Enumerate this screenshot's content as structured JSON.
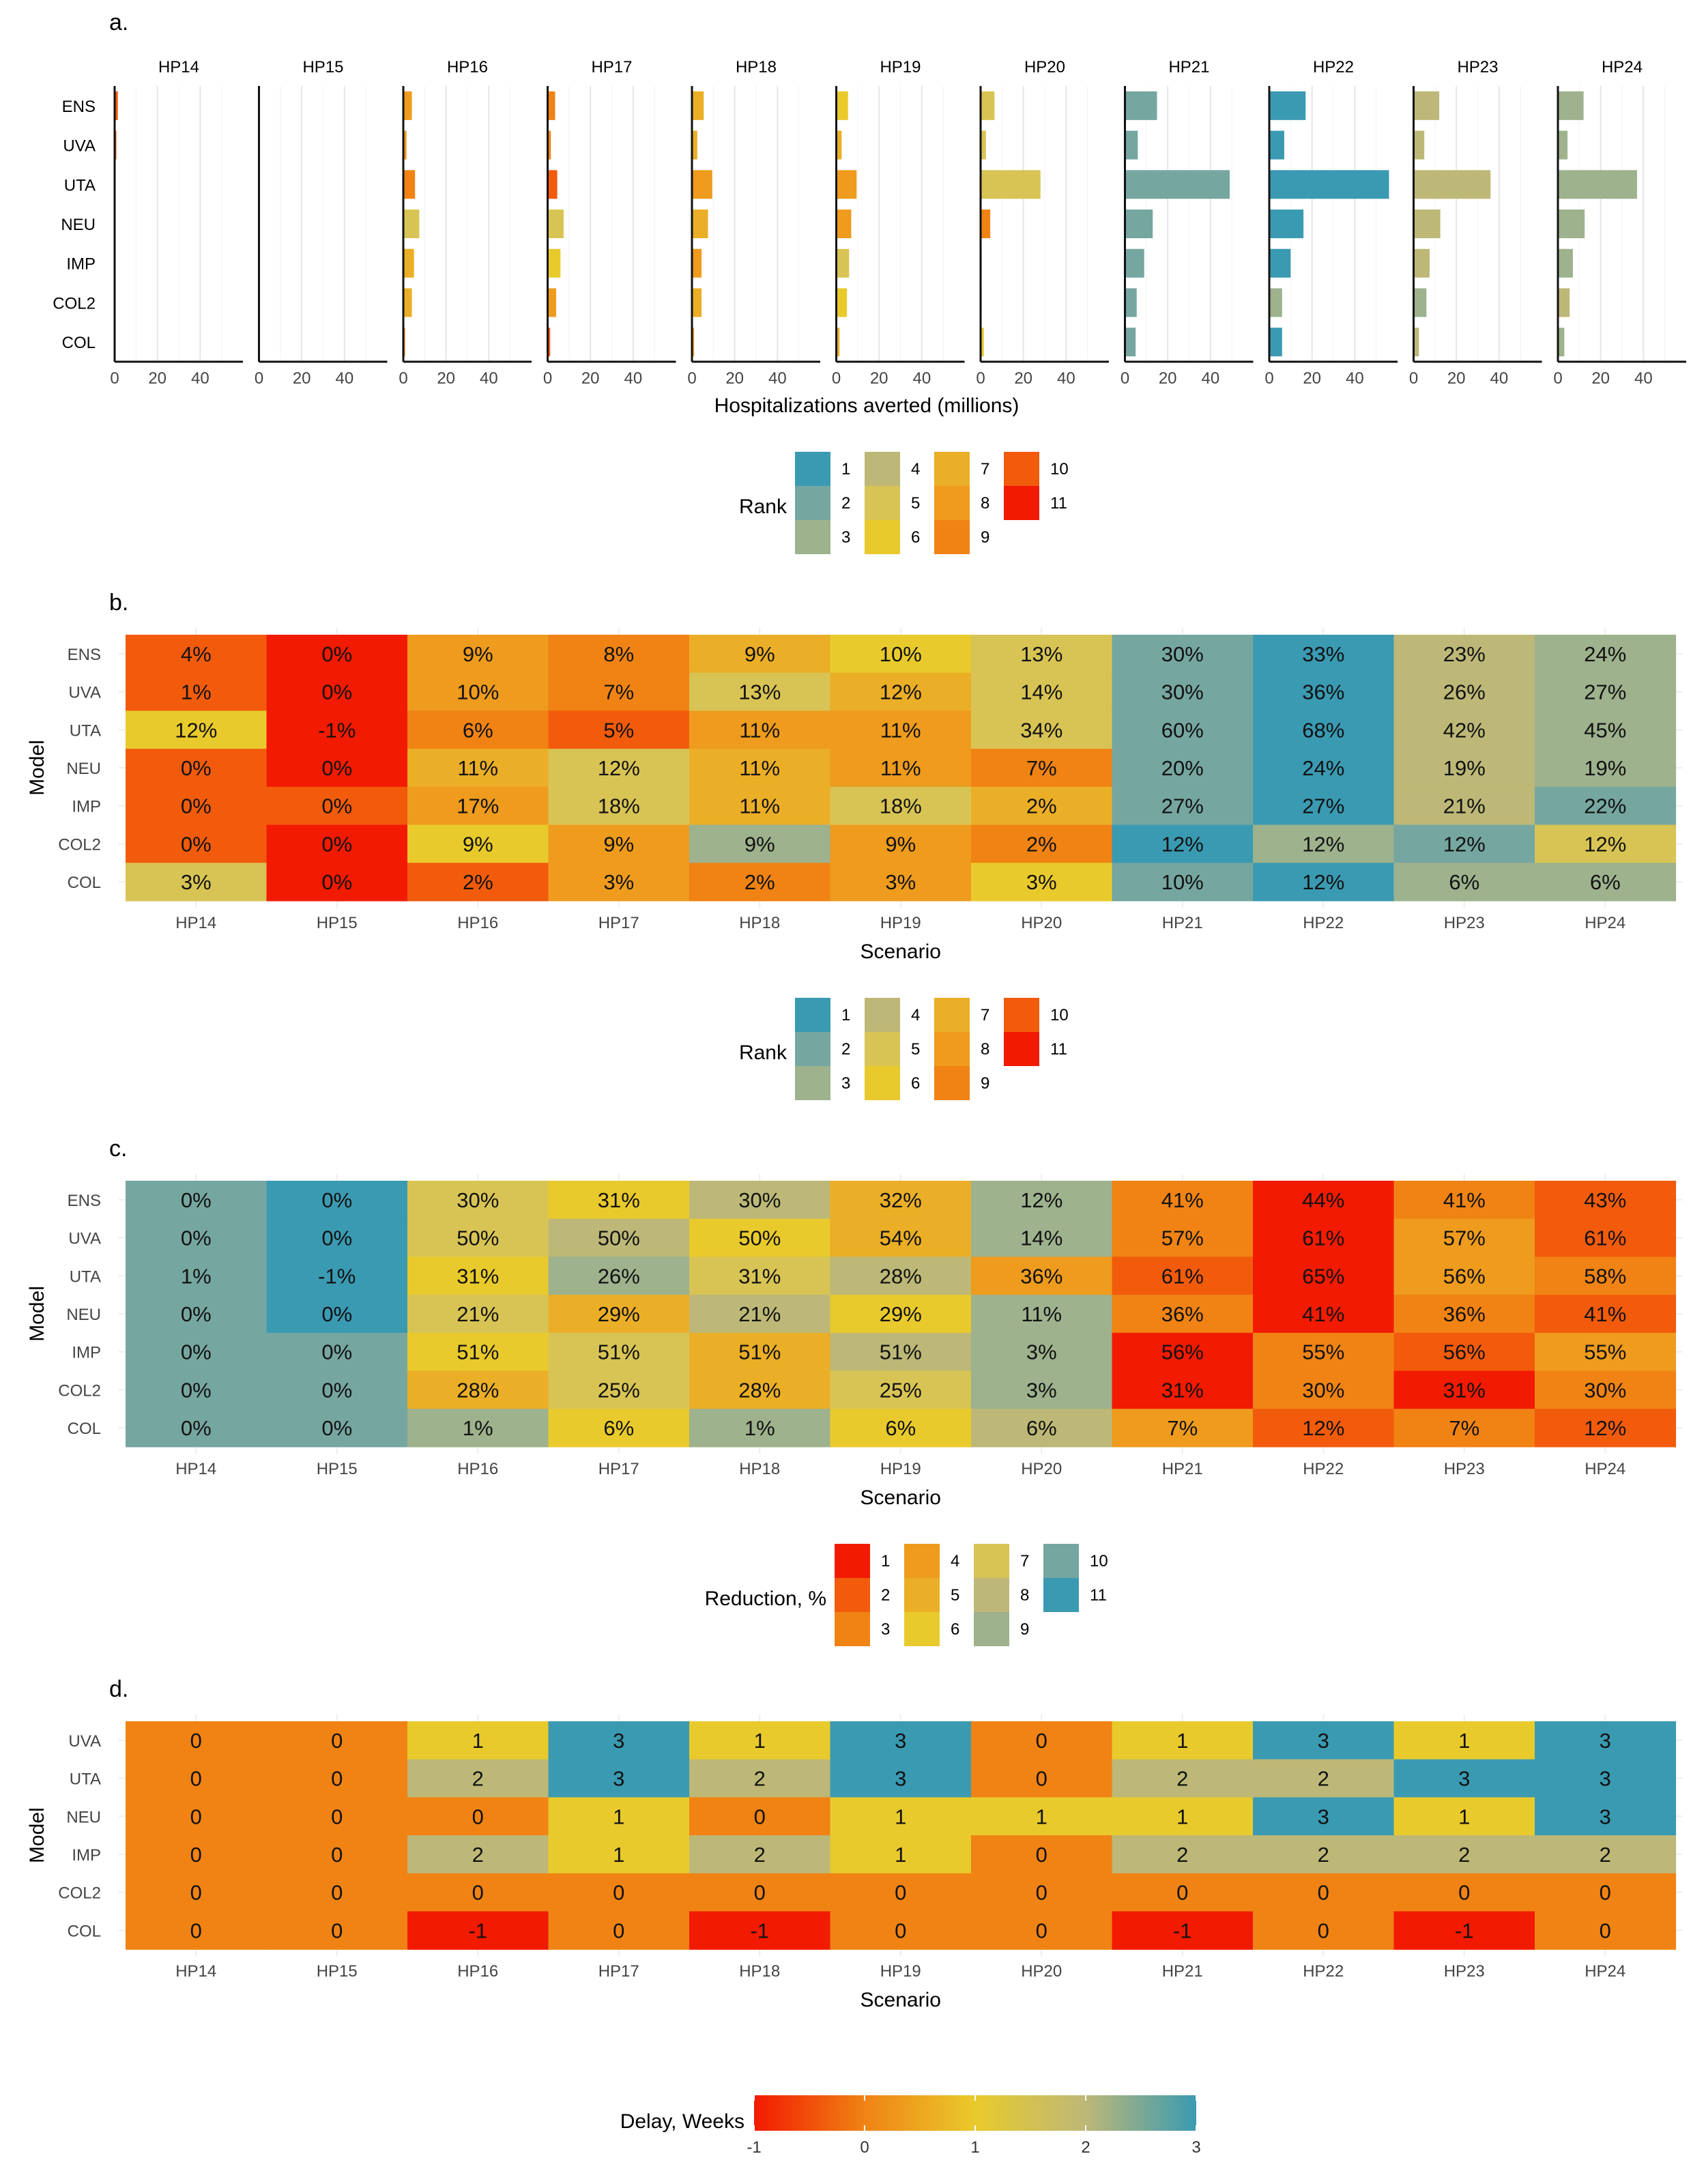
{
  "colors": {
    "rank_palette": [
      "#3A9AB2",
      "#76A6A0",
      "#9DB28D",
      "#BDB877",
      "#D8C454",
      "#E9CA2C",
      "#EBAE27",
      "#EE9B1E",
      "#F08314",
      "#F25B0C",
      "#F21A00"
    ],
    "delay_gradient": [
      "#F21A00",
      "#F08314",
      "#E9CA2C",
      "#BDB877",
      "#3A9AB2"
    ],
    "grid": "#E6E6E6",
    "axis": "#111111"
  },
  "chart_data": [
    {
      "type": "bar",
      "panel_label": "a.",
      "facets": [
        "HP14",
        "HP15",
        "HP16",
        "HP17",
        "HP18",
        "HP19",
        "HP20",
        "HP21",
        "HP22",
        "HP23",
        "HP24"
      ],
      "categories": [
        "ENS",
        "UVA",
        "UTA",
        "NEU",
        "IMP",
        "COL2",
        "COL"
      ],
      "xlim": [
        0,
        60
      ],
      "xticks": [
        0,
        20,
        40
      ],
      "xlabel": "Hospitalizations averted (millions)",
      "legend_title": "Rank",
      "legend_labels": [
        "1",
        "2",
        "3",
        "4",
        "5",
        "6",
        "7",
        "8",
        "9",
        "10",
        "11"
      ],
      "values": [
        [
          1.5,
          0.8,
          0,
          0,
          0.1,
          0,
          0
        ],
        [
          0.3,
          0.2,
          0.3,
          0.1,
          0.1,
          0.1,
          0.1
        ],
        [
          4,
          1.5,
          5.5,
          7.5,
          5,
          4,
          0.8
        ],
        [
          3.5,
          1.5,
          4.5,
          7.5,
          6,
          4,
          1.2
        ],
        [
          5.5,
          2.5,
          9.5,
          7.5,
          4.5,
          4.5,
          1
        ],
        [
          5.5,
          2.5,
          9.5,
          7,
          6,
          5,
          1.5
        ],
        [
          6.5,
          2.5,
          28,
          4.5,
          0.5,
          0.5,
          1.5
        ],
        [
          15,
          6,
          49,
          13,
          9,
          5.5,
          5
        ],
        [
          17,
          7,
          56,
          16,
          10,
          6,
          6
        ],
        [
          12,
          5,
          36,
          12.5,
          7.5,
          6,
          2.5
        ],
        [
          12,
          4.5,
          37,
          12.5,
          7,
          5.5,
          3
        ]
      ],
      "ranks": [
        [
          10,
          10,
          6,
          10,
          10,
          10,
          8
        ],
        [
          11,
          11,
          11,
          11,
          11,
          11,
          11
        ],
        [
          8,
          8,
          9,
          5,
          7,
          7,
          9
        ],
        [
          9,
          9,
          10,
          5,
          6,
          8,
          10
        ],
        [
          7,
          7,
          8,
          7,
          8,
          7,
          8
        ],
        [
          6,
          7,
          8,
          8,
          5,
          6,
          7
        ],
        [
          5,
          5,
          5,
          9,
          11,
          11,
          6
        ],
        [
          2,
          2,
          2,
          2,
          2,
          2,
          2
        ],
        [
          1,
          1,
          1,
          1,
          1,
          3,
          1
        ],
        [
          4,
          4,
          4,
          4,
          4,
          3,
          4
        ],
        [
          3,
          3,
          3,
          3,
          3,
          4,
          3
        ]
      ]
    },
    {
      "type": "heatmap",
      "panel_label": "b.",
      "x": [
        "HP14",
        "HP15",
        "HP16",
        "HP17",
        "HP18",
        "HP19",
        "HP20",
        "HP21",
        "HP22",
        "HP23",
        "HP24"
      ],
      "y": [
        "ENS",
        "UVA",
        "UTA",
        "NEU",
        "IMP",
        "COL2",
        "COL"
      ],
      "xlabel": "Scenario",
      "ylabel": "Model",
      "legend_title": "Rank",
      "legend_labels": [
        "1",
        "2",
        "3",
        "4",
        "5",
        "6",
        "7",
        "8",
        "9",
        "10",
        "11"
      ],
      "cells": [
        [
          "4%",
          "0%",
          "9%",
          "8%",
          "9%",
          "10%",
          "13%",
          "30%",
          "33%",
          "23%",
          "24%"
        ],
        [
          "1%",
          "0%",
          "10%",
          "7%",
          "13%",
          "12%",
          "14%",
          "30%",
          "36%",
          "26%",
          "27%"
        ],
        [
          "12%",
          "-1%",
          "6%",
          "5%",
          "11%",
          "11%",
          "34%",
          "60%",
          "68%",
          "42%",
          "45%"
        ],
        [
          "0%",
          "0%",
          "11%",
          "12%",
          "11%",
          "11%",
          "7%",
          "20%",
          "24%",
          "19%",
          "19%"
        ],
        [
          "0%",
          "0%",
          "17%",
          "18%",
          "11%",
          "18%",
          "2%",
          "27%",
          "27%",
          "21%",
          "22%"
        ],
        [
          "0%",
          "0%",
          "9%",
          "9%",
          "9%",
          "9%",
          "2%",
          "12%",
          "12%",
          "12%",
          "12%"
        ],
        [
          "3%",
          "0%",
          "2%",
          "3%",
          "2%",
          "3%",
          "3%",
          "10%",
          "12%",
          "6%",
          "6%"
        ]
      ],
      "ranks": [
        [
          10,
          11,
          8,
          9,
          7,
          6,
          5,
          2,
          1,
          4,
          3
        ],
        [
          10,
          11,
          8,
          9,
          5,
          7,
          5,
          2,
          1,
          4,
          3
        ],
        [
          6,
          11,
          9,
          10,
          8,
          8,
          5,
          2,
          1,
          4,
          3
        ],
        [
          10,
          11,
          7,
          5,
          7,
          8,
          9,
          2,
          1,
          4,
          3
        ],
        [
          10,
          10,
          8,
          5,
          7,
          5,
          7,
          2,
          1,
          4,
          2
        ],
        [
          10,
          11,
          6,
          8,
          3,
          8,
          9,
          1,
          3,
          2,
          5
        ],
        [
          5,
          11,
          10,
          8,
          9,
          8,
          6,
          2,
          1,
          3,
          3
        ]
      ]
    },
    {
      "type": "heatmap",
      "panel_label": "c.",
      "x": [
        "HP14",
        "HP15",
        "HP16",
        "HP17",
        "HP18",
        "HP19",
        "HP20",
        "HP21",
        "HP22",
        "HP23",
        "HP24"
      ],
      "y": [
        "ENS",
        "UVA",
        "UTA",
        "NEU",
        "IMP",
        "COL2",
        "COL"
      ],
      "xlabel": "Scenario",
      "ylabel": "Model",
      "legend_title": "Reduction, %",
      "legend_labels": [
        "1",
        "2",
        "3",
        "4",
        "5",
        "6",
        "7",
        "8",
        "9",
        "10",
        "11"
      ],
      "cells": [
        [
          "0%",
          "0%",
          "30%",
          "31%",
          "30%",
          "32%",
          "12%",
          "41%",
          "44%",
          "41%",
          "43%"
        ],
        [
          "0%",
          "0%",
          "50%",
          "50%",
          "50%",
          "54%",
          "14%",
          "57%",
          "61%",
          "57%",
          "61%"
        ],
        [
          "1%",
          "-1%",
          "31%",
          "26%",
          "31%",
          "28%",
          "36%",
          "61%",
          "65%",
          "56%",
          "58%"
        ],
        [
          "0%",
          "0%",
          "21%",
          "29%",
          "21%",
          "29%",
          "11%",
          "36%",
          "41%",
          "36%",
          "41%"
        ],
        [
          "0%",
          "0%",
          "51%",
          "51%",
          "51%",
          "51%",
          "3%",
          "56%",
          "55%",
          "56%",
          "55%"
        ],
        [
          "0%",
          "0%",
          "28%",
          "25%",
          "28%",
          "25%",
          "3%",
          "31%",
          "30%",
          "31%",
          "30%"
        ],
        [
          "0%",
          "0%",
          "1%",
          "6%",
          "1%",
          "6%",
          "6%",
          "7%",
          "12%",
          "7%",
          "12%"
        ]
      ],
      "ranks": [
        [
          10,
          11,
          7,
          6,
          8,
          5,
          9,
          3,
          1,
          3,
          2
        ],
        [
          10,
          11,
          7,
          8,
          6,
          5,
          9,
          3,
          1,
          4,
          2
        ],
        [
          10,
          11,
          6,
          9,
          7,
          8,
          4,
          2,
          1,
          4,
          3
        ],
        [
          10,
          11,
          7,
          5,
          8,
          6,
          9,
          3,
          1,
          3,
          2
        ],
        [
          10,
          10,
          6,
          7,
          5,
          8,
          9,
          1,
          3,
          2,
          4
        ],
        [
          10,
          10,
          5,
          7,
          5,
          7,
          9,
          1,
          3,
          1,
          3
        ],
        [
          10,
          10,
          9,
          6,
          9,
          6,
          8,
          4,
          2,
          3,
          2
        ]
      ]
    },
    {
      "type": "heatmap",
      "panel_label": "d.",
      "x": [
        "HP14",
        "HP15",
        "HP16",
        "HP17",
        "HP18",
        "HP19",
        "HP20",
        "HP21",
        "HP22",
        "HP23",
        "HP24"
      ],
      "y": [
        "UVA",
        "UTA",
        "NEU",
        "IMP",
        "COL2",
        "COL"
      ],
      "xlabel": "Scenario",
      "ylabel": "Model",
      "legend_title": "Delay, Weeks",
      "legend_range": [
        -1,
        3
      ],
      "legend_ticks": [
        "-1",
        "0",
        "1",
        "2",
        "3"
      ],
      "cells": [
        [
          "0",
          "0",
          "1",
          "3",
          "1",
          "3",
          "0",
          "1",
          "3",
          "1",
          "3"
        ],
        [
          "0",
          "0",
          "2",
          "3",
          "2",
          "3",
          "0",
          "2",
          "2",
          "3",
          "3"
        ],
        [
          "0",
          "0",
          "0",
          "1",
          "0",
          "1",
          "1",
          "1",
          "3",
          "1",
          "3"
        ],
        [
          "0",
          "0",
          "2",
          "1",
          "2",
          "1",
          "0",
          "2",
          "2",
          "2",
          "2"
        ],
        [
          "0",
          "0",
          "0",
          "0",
          "0",
          "0",
          "0",
          "0",
          "0",
          "0",
          "0"
        ],
        [
          "0",
          "0",
          "-1",
          "0",
          "-1",
          "0",
          "0",
          "-1",
          "0",
          "-1",
          "0"
        ]
      ]
    }
  ]
}
